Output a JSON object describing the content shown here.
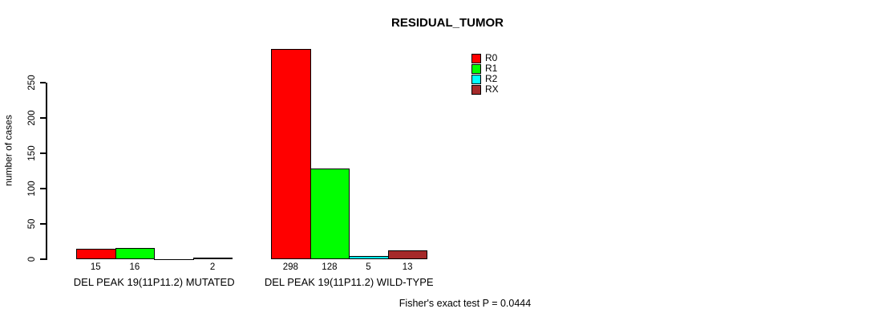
{
  "chart_data": {
    "type": "bar",
    "title": "RESIDUAL_TUMOR",
    "ylabel": "number of cases",
    "xlabel": "",
    "ylim": [
      0,
      250
    ],
    "yticks": [
      0,
      50,
      100,
      150,
      200,
      250
    ],
    "grid": false,
    "legend_position": "top-right",
    "background_color": "#ffffff",
    "axis_color": "#000000",
    "groups": [
      "DEL PEAK 19(11P11.2) MUTATED",
      "DEL PEAK 19(11P11.2) WILD-TYPE"
    ],
    "series": [
      {
        "name": "R0",
        "color": "#ff0000",
        "values": [
          15,
          298
        ]
      },
      {
        "name": "R1",
        "color": "#00ff00",
        "values": [
          16,
          128
        ]
      },
      {
        "name": "R2",
        "color": "#00ffff",
        "values": [
          0,
          5
        ]
      },
      {
        "name": "RX",
        "color": "#a52a2a",
        "values": [
          2,
          13
        ]
      }
    ],
    "bar_labels": [
      [
        "15",
        "16",
        "",
        "2"
      ],
      [
        "298",
        "128",
        "5",
        "13"
      ]
    ],
    "annotation": "Fisher's exact test P = 0.0444"
  }
}
